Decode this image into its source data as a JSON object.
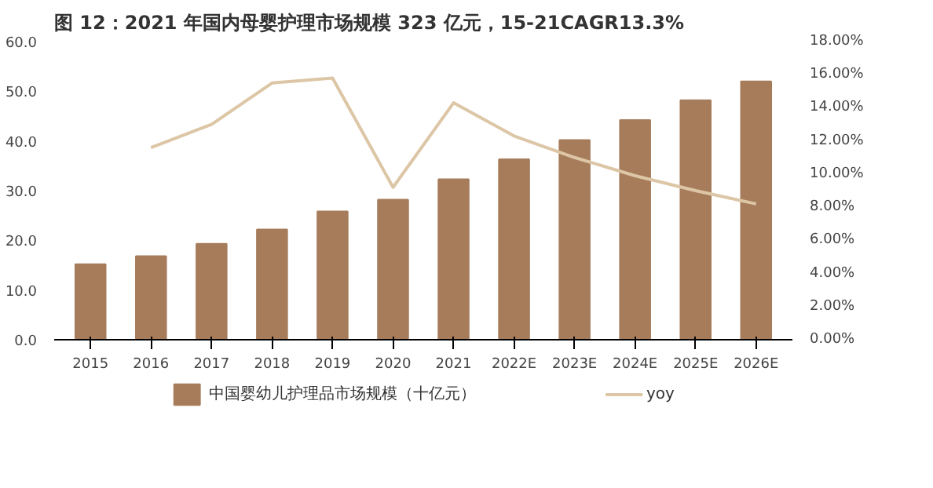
{
  "chart_data": {
    "type": "bar",
    "title": "图 12：2021 年国内母婴护理市场规模 323 亿元，15-21CAGR13.3%",
    "categories": [
      "2015",
      "2016",
      "2017",
      "2018",
      "2019",
      "2020",
      "2021",
      "2022E",
      "2023E",
      "2024E",
      "2025E",
      "2026E"
    ],
    "series": [
      {
        "name": "中国婴幼儿护理品市场规模（十亿元）",
        "color": "#a67c5b",
        "values": [
          15.2,
          16.8,
          19.3,
          22.2,
          25.8,
          28.2,
          32.3,
          36.3,
          40.2,
          44.2,
          48.2,
          52.0
        ]
      },
      {
        "name": "yoy",
        "color": "#dcc6a6",
        "type": "line",
        "axis": "y2",
        "values": [
          null,
          11.6,
          13.0,
          15.5,
          15.8,
          9.2,
          14.3,
          12.3,
          11.0,
          9.9,
          9.0,
          8.2
        ]
      }
    ],
    "ylim": [
      0,
      60
    ],
    "yticks": [
      {
        "value": 0,
        "label": "0.0"
      },
      {
        "value": 10,
        "label": "10.0"
      },
      {
        "value": 20,
        "label": "20.0"
      },
      {
        "value": 30,
        "label": "30.0"
      },
      {
        "value": 40,
        "label": "40.0"
      },
      {
        "value": 50,
        "label": "50.0"
      },
      {
        "value": 60,
        "label": "60.0"
      }
    ],
    "y2lim": [
      0,
      18
    ],
    "y2ticks": [
      {
        "value": 0,
        "label": "0.00%"
      },
      {
        "value": 2,
        "label": "2.00%"
      },
      {
        "value": 4,
        "label": "4.00%"
      },
      {
        "value": 6,
        "label": "6.00%"
      },
      {
        "value": 8,
        "label": "8.00%"
      },
      {
        "value": 10,
        "label": "10.00%"
      },
      {
        "value": 12,
        "label": "12.00%"
      },
      {
        "value": 14,
        "label": "14.00%"
      },
      {
        "value": 16,
        "label": "16.00%"
      },
      {
        "value": 18,
        "label": "18.00%"
      }
    ],
    "legend": "bottom",
    "grid": false,
    "marker": "none",
    "line_style": "solid"
  }
}
